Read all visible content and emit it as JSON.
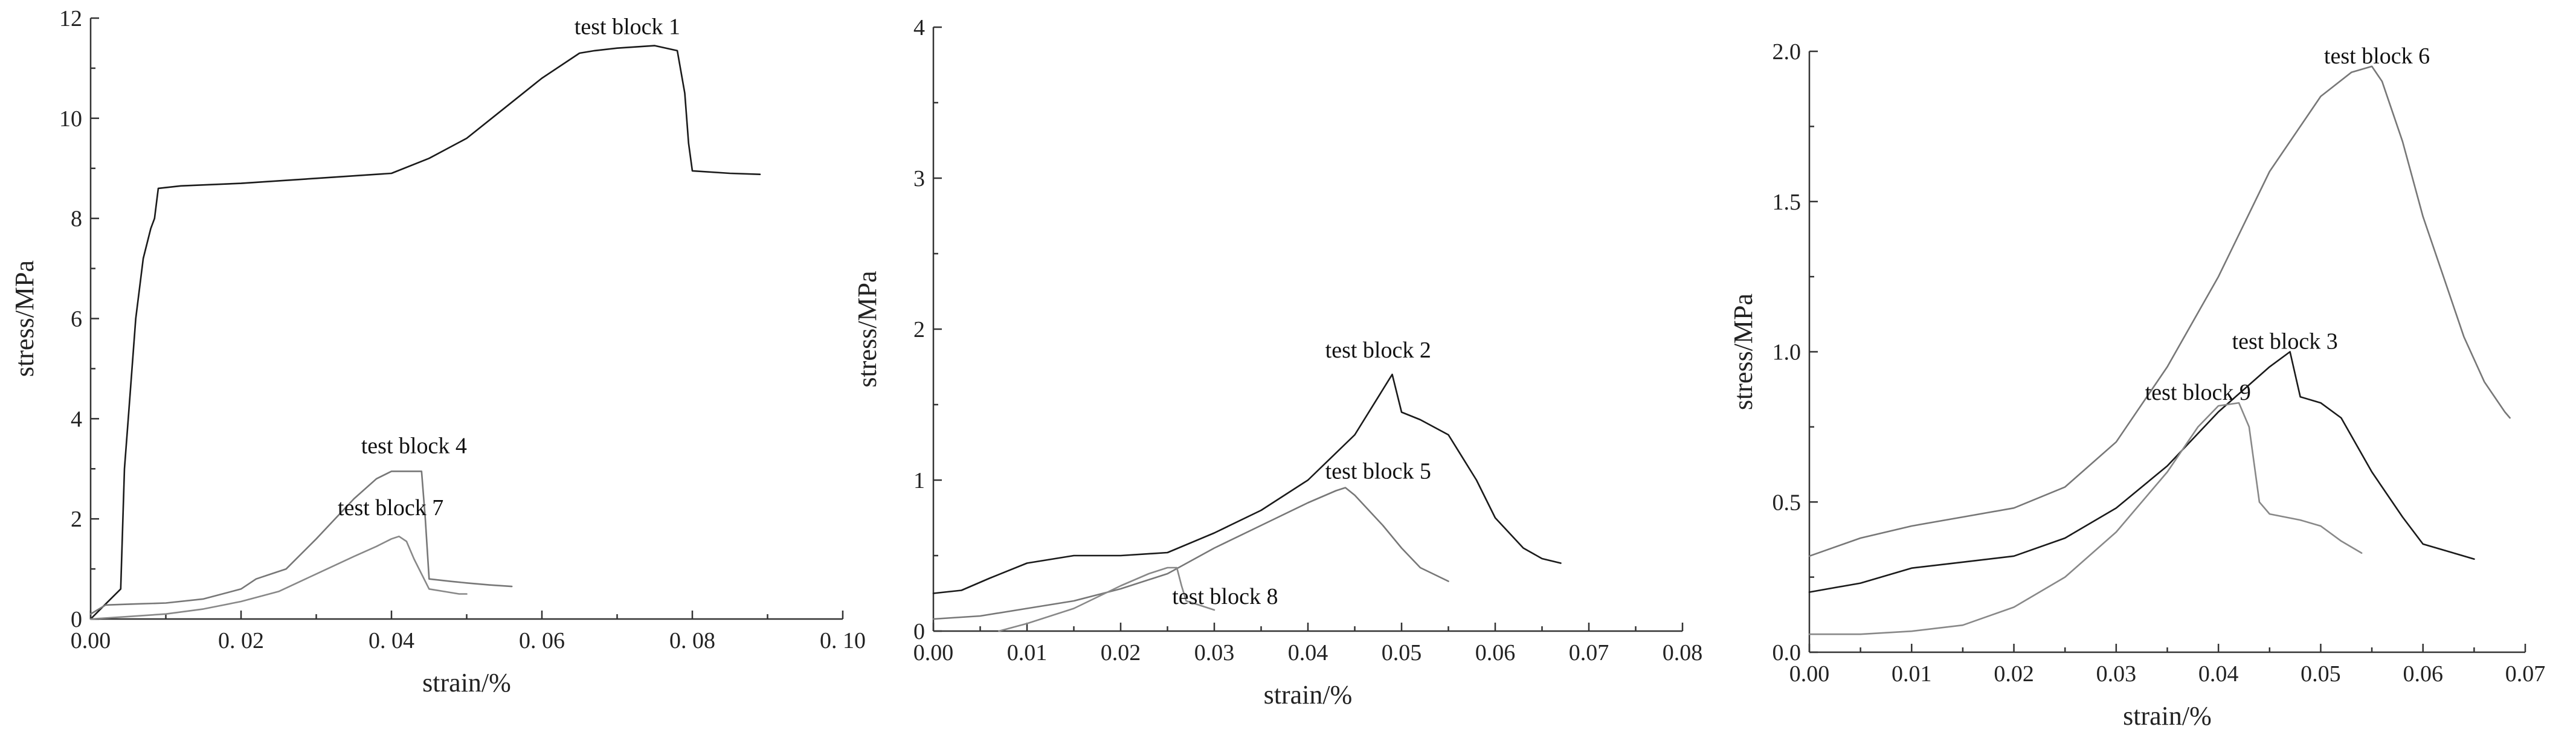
{
  "chart_data": [
    {
      "type": "line",
      "xlabel": "strain/%",
      "ylabel": "stress/MPa",
      "xlim": [
        0,
        0.1
      ],
      "ylim": [
        0,
        12
      ],
      "xticks": [
        0,
        0.02,
        0.04,
        0.06,
        0.08,
        0.1
      ],
      "xtick_labels": [
        "0.00",
        "0. 02",
        "0. 04",
        "0. 06",
        "0. 08",
        "0. 10"
      ],
      "yticks": [
        0,
        2,
        4,
        6,
        8,
        10,
        12
      ],
      "ytick_labels": [
        "0",
        "2",
        "4",
        "6",
        "8",
        "10",
        "12"
      ],
      "grid": false,
      "series": [
        {
          "name": "test block 1",
          "color": "#1a1a1a",
          "x": [
            0,
            0.002,
            0.004,
            0.0045,
            0.005,
            0.006,
            0.007,
            0.008,
            0.0085,
            0.009,
            0.012,
            0.02,
            0.03,
            0.04,
            0.045,
            0.05,
            0.055,
            0.06,
            0.065,
            0.067,
            0.07,
            0.075,
            0.078,
            0.079,
            0.0795,
            0.08,
            0.085,
            0.089
          ],
          "y": [
            0,
            0.3,
            0.6,
            3.0,
            4.0,
            6.0,
            7.2,
            7.8,
            8.0,
            8.6,
            8.65,
            8.7,
            8.8,
            8.9,
            9.2,
            9.6,
            10.2,
            10.8,
            11.3,
            11.35,
            11.4,
            11.45,
            11.35,
            10.5,
            9.5,
            8.95,
            8.9,
            8.88
          ]
        },
        {
          "name": "test block 4",
          "color": "#777777",
          "x": [
            0,
            0.002,
            0.006,
            0.01,
            0.015,
            0.02,
            0.022,
            0.024,
            0.026,
            0.03,
            0.035,
            0.038,
            0.04,
            0.042,
            0.044,
            0.0445,
            0.045,
            0.048,
            0.05,
            0.053,
            0.056
          ],
          "y": [
            0.1,
            0.28,
            0.3,
            0.32,
            0.4,
            0.6,
            0.8,
            0.9,
            1.0,
            1.6,
            2.4,
            2.8,
            2.95,
            2.95,
            2.95,
            2.0,
            0.8,
            0.75,
            0.72,
            0.68,
            0.65
          ]
        },
        {
          "name": "test block 7",
          "color": "#888888",
          "x": [
            0,
            0.005,
            0.01,
            0.015,
            0.02,
            0.025,
            0.03,
            0.035,
            0.038,
            0.04,
            0.041,
            0.042,
            0.043,
            0.044,
            0.045,
            0.047,
            0.049,
            0.05
          ],
          "y": [
            0,
            0.05,
            0.1,
            0.2,
            0.35,
            0.55,
            0.9,
            1.25,
            1.45,
            1.6,
            1.65,
            1.55,
            1.2,
            0.9,
            0.6,
            0.55,
            0.5,
            0.5
          ]
        }
      ]
    },
    {
      "type": "line",
      "xlabel": "strain/%",
      "ylabel": "stress/MPa",
      "xlim": [
        0,
        0.08
      ],
      "ylim": [
        0,
        4
      ],
      "xticks": [
        0,
        0.01,
        0.02,
        0.03,
        0.04,
        0.05,
        0.06,
        0.07,
        0.08
      ],
      "xtick_labels": [
        "0.00",
        "0.01",
        "0.02",
        "0.03",
        "0.04",
        "0.05",
        "0.06",
        "0.07",
        "0.08"
      ],
      "yticks": [
        0,
        1,
        2,
        3,
        4
      ],
      "ytick_labels": [
        "0",
        "1",
        "2",
        "3",
        "4"
      ],
      "grid": false,
      "series": [
        {
          "name": "test block 2",
          "color": "#1a1a1a",
          "x": [
            0,
            0.003,
            0.006,
            0.01,
            0.015,
            0.02,
            0.025,
            0.03,
            0.035,
            0.04,
            0.045,
            0.048,
            0.049,
            0.05,
            0.052,
            0.055,
            0.058,
            0.06,
            0.063,
            0.065,
            0.067
          ],
          "y": [
            0.25,
            0.27,
            0.35,
            0.45,
            0.5,
            0.5,
            0.52,
            0.65,
            0.8,
            1.0,
            1.3,
            1.6,
            1.7,
            1.45,
            1.4,
            1.3,
            1.0,
            0.75,
            0.55,
            0.48,
            0.45
          ]
        },
        {
          "name": "test block 5",
          "color": "#777777",
          "x": [
            0,
            0.005,
            0.01,
            0.015,
            0.02,
            0.025,
            0.03,
            0.035,
            0.04,
            0.043,
            0.044,
            0.045,
            0.048,
            0.05,
            0.052,
            0.055
          ],
          "y": [
            0.08,
            0.1,
            0.15,
            0.2,
            0.28,
            0.38,
            0.55,
            0.7,
            0.85,
            0.93,
            0.95,
            0.9,
            0.7,
            0.55,
            0.42,
            0.33
          ]
        },
        {
          "name": "test block 8",
          "color": "#888888",
          "x": [
            0.007,
            0.01,
            0.015,
            0.02,
            0.023,
            0.025,
            0.026,
            0.0265,
            0.027,
            0.028,
            0.03
          ],
          "y": [
            0,
            0.05,
            0.15,
            0.3,
            0.38,
            0.42,
            0.42,
            0.3,
            0.2,
            0.18,
            0.14
          ]
        }
      ]
    },
    {
      "type": "line",
      "xlabel": "strain/%",
      "ylabel": "stress/MPa",
      "xlim": [
        0,
        0.07
      ],
      "ylim": [
        0,
        2.0
      ],
      "xticks": [
        0,
        0.01,
        0.02,
        0.03,
        0.04,
        0.05,
        0.06,
        0.07
      ],
      "xtick_labels": [
        "0.00",
        "0.01",
        "0.02",
        "0.03",
        "0.04",
        "0.05",
        "0.06",
        "0.07"
      ],
      "yticks": [
        0,
        0.5,
        1.0,
        1.5,
        2.0
      ],
      "ytick_labels": [
        "0.0",
        "0.5",
        "1.0",
        "1.5",
        "2.0"
      ],
      "grid": false,
      "series": [
        {
          "name": "test block 6",
          "color": "#777777",
          "x": [
            0,
            0.005,
            0.01,
            0.015,
            0.02,
            0.025,
            0.03,
            0.035,
            0.04,
            0.045,
            0.05,
            0.053,
            0.055,
            0.056,
            0.058,
            0.06,
            0.062,
            0.064,
            0.066,
            0.068,
            0.0685
          ],
          "y": [
            0.32,
            0.38,
            0.42,
            0.45,
            0.48,
            0.55,
            0.7,
            0.95,
            1.25,
            1.6,
            1.85,
            1.93,
            1.95,
            1.9,
            1.7,
            1.45,
            1.25,
            1.05,
            0.9,
            0.8,
            0.78
          ]
        },
        {
          "name": "test block 3",
          "color": "#1a1a1a",
          "x": [
            0,
            0.005,
            0.01,
            0.015,
            0.02,
            0.025,
            0.03,
            0.035,
            0.04,
            0.045,
            0.047,
            0.048,
            0.05,
            0.052,
            0.055,
            0.058,
            0.06,
            0.063,
            0.065
          ],
          "y": [
            0.2,
            0.23,
            0.28,
            0.3,
            0.32,
            0.38,
            0.48,
            0.62,
            0.8,
            0.95,
            1.0,
            0.85,
            0.83,
            0.78,
            0.6,
            0.45,
            0.36,
            0.33,
            0.31
          ]
        },
        {
          "name": "test block 9",
          "color": "#888888",
          "x": [
            0,
            0.005,
            0.01,
            0.015,
            0.02,
            0.025,
            0.03,
            0.035,
            0.038,
            0.04,
            0.042,
            0.043,
            0.044,
            0.045,
            0.048,
            0.05,
            0.052,
            0.054
          ],
          "y": [
            0.06,
            0.06,
            0.07,
            0.09,
            0.15,
            0.25,
            0.4,
            0.6,
            0.75,
            0.82,
            0.83,
            0.75,
            0.5,
            0.46,
            0.44,
            0.42,
            0.37,
            0.33
          ]
        }
      ]
    }
  ]
}
